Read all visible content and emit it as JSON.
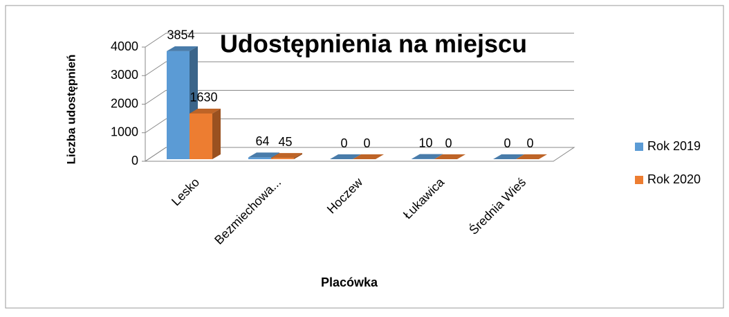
{
  "chart_data": {
    "type": "bar",
    "title": "Udostępnienia na miejscu",
    "x_label": "Placówka",
    "y_label": "Liczba udostępnień",
    "categories": [
      "Lesko",
      "Bezmiechowa...",
      "Hoczew",
      "Łukawica",
      "Średnia Wieś"
    ],
    "series": [
      {
        "name": "Rok 2019",
        "color": "#5b9bd5",
        "values": [
          3854,
          64,
          0,
          10,
          0
        ]
      },
      {
        "name": "Rok 2020",
        "color": "#ed7d31",
        "values": [
          1630,
          45,
          0,
          0,
          0
        ]
      }
    ],
    "ylim": [
      0,
      4000
    ],
    "yticks": [
      0,
      1000,
      2000,
      3000,
      4000
    ],
    "grid": true,
    "legend": "right"
  }
}
